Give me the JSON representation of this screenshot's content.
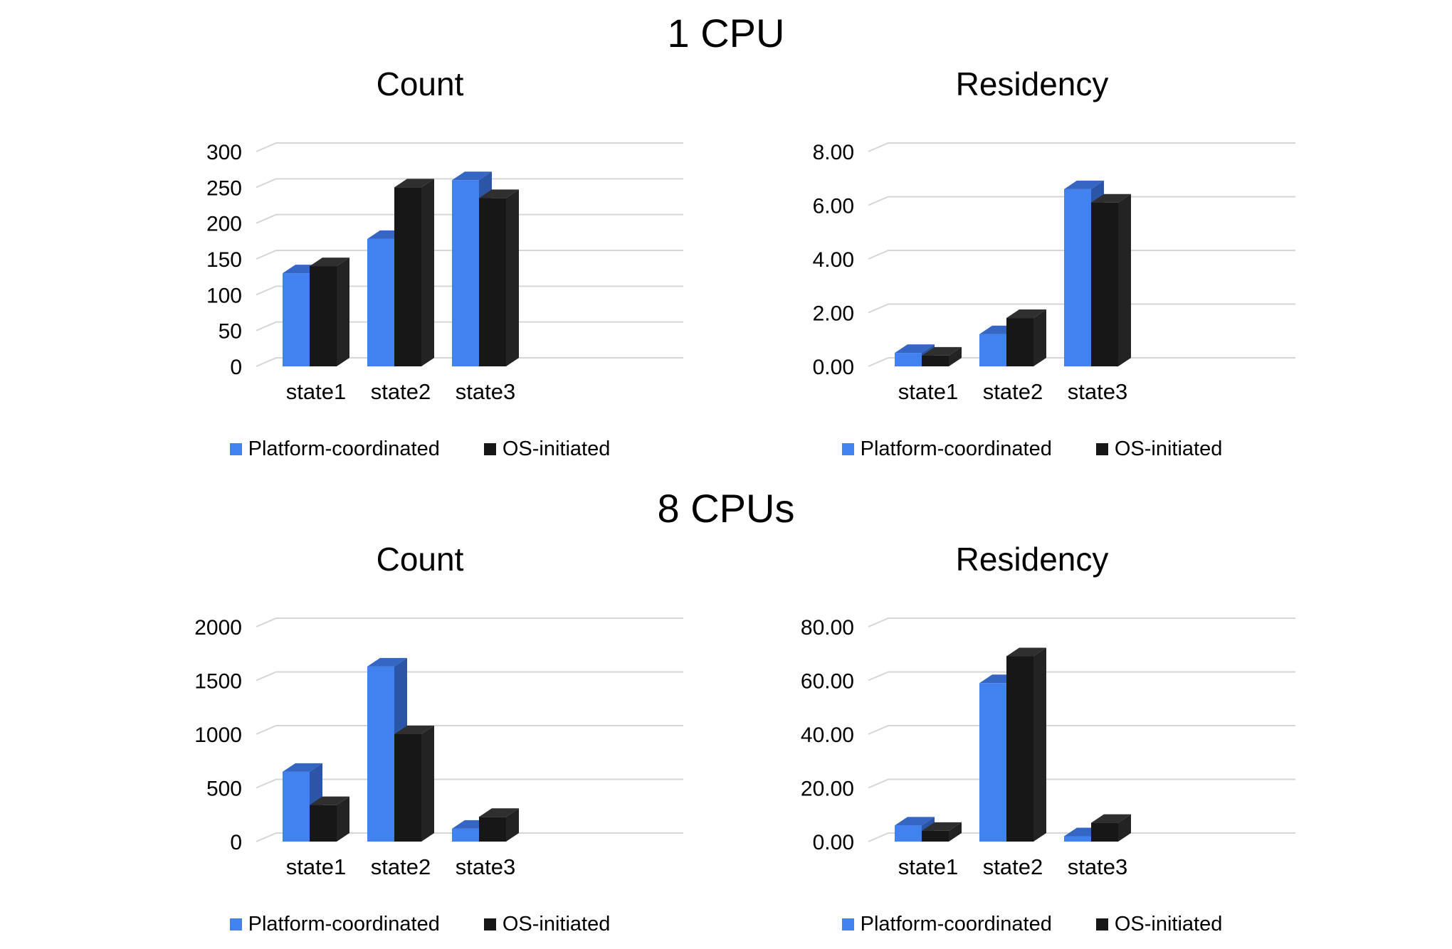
{
  "page": {
    "sections": [
      {
        "title": "1 CPU"
      },
      {
        "title": "8 CPUs"
      }
    ]
  },
  "style": {
    "grid_color": "#D6D6D6",
    "text_color": "#000000",
    "background": "#FFFFFF",
    "platform_color": "#4282F0",
    "os_color": "#171717"
  },
  "chart_data": [
    {
      "type": "bar",
      "variant": "3d-column",
      "section": "1 CPU",
      "title": "Count",
      "categories": [
        "state1",
        "state2",
        "state3"
      ],
      "series": [
        {
          "name": "Platform-coordinated",
          "values": [
            130,
            178,
            260
          ],
          "colors": {
            "front": "#4282F0",
            "top": "#3566C4",
            "side": "#2B55A6"
          }
        },
        {
          "name": "OS-initiated",
          "values": [
            140,
            250,
            235
          ],
          "colors": {
            "front": "#171717",
            "top": "#2F2F2F",
            "side": "#232323"
          }
        }
      ],
      "ylim": [
        0,
        300
      ],
      "ytick_step": 50,
      "yticks": [
        "0",
        "50",
        "100",
        "150",
        "200",
        "250",
        "300"
      ],
      "grid": true,
      "legend_position": "bottom"
    },
    {
      "type": "bar",
      "variant": "3d-column",
      "section": "1 CPU",
      "title": "Residency",
      "categories": [
        "state1",
        "state2",
        "state3"
      ],
      "series": [
        {
          "name": "Platform-coordinated",
          "values": [
            0.5,
            1.2,
            6.6
          ],
          "colors": {
            "front": "#4282F0",
            "top": "#3566C4",
            "side": "#2B55A6"
          }
        },
        {
          "name": "OS-initiated",
          "values": [
            0.4,
            1.8,
            6.1
          ],
          "colors": {
            "front": "#171717",
            "top": "#2F2F2F",
            "side": "#232323"
          }
        }
      ],
      "ylim": [
        0,
        8
      ],
      "ytick_step": 2,
      "yticks": [
        "0.00",
        "2.00",
        "4.00",
        "6.00",
        "8.00"
      ],
      "grid": true,
      "legend_position": "bottom"
    },
    {
      "type": "bar",
      "variant": "3d-column",
      "section": "8 CPUs",
      "title": "Count",
      "categories": [
        "state1",
        "state2",
        "state3"
      ],
      "series": [
        {
          "name": "Platform-coordinated",
          "values": [
            650,
            1630,
            120
          ],
          "colors": {
            "front": "#4282F0",
            "top": "#3566C4",
            "side": "#2B55A6"
          }
        },
        {
          "name": "OS-initiated",
          "values": [
            340,
            1000,
            230
          ],
          "colors": {
            "front": "#171717",
            "top": "#2F2F2F",
            "side": "#232323"
          }
        }
      ],
      "ylim": [
        0,
        2000
      ],
      "ytick_step": 500,
      "yticks": [
        "0",
        "500",
        "1000",
        "1500",
        "2000"
      ],
      "grid": true,
      "legend_position": "bottom"
    },
    {
      "type": "bar",
      "variant": "3d-column",
      "section": "8 CPUs",
      "title": "Residency",
      "categories": [
        "state1",
        "state2",
        "state3"
      ],
      "series": [
        {
          "name": "Platform-coordinated",
          "values": [
            6,
            59,
            2
          ],
          "colors": {
            "front": "#4282F0",
            "top": "#3566C4",
            "side": "#2B55A6"
          }
        },
        {
          "name": "OS-initiated",
          "values": [
            4,
            69,
            7
          ],
          "colors": {
            "front": "#171717",
            "top": "#2F2F2F",
            "side": "#232323"
          }
        }
      ],
      "ylim": [
        0,
        80
      ],
      "ytick_step": 20,
      "yticks": [
        "0.00",
        "20.00",
        "40.00",
        "60.00",
        "80.00"
      ],
      "grid": true,
      "legend_position": "bottom"
    }
  ]
}
